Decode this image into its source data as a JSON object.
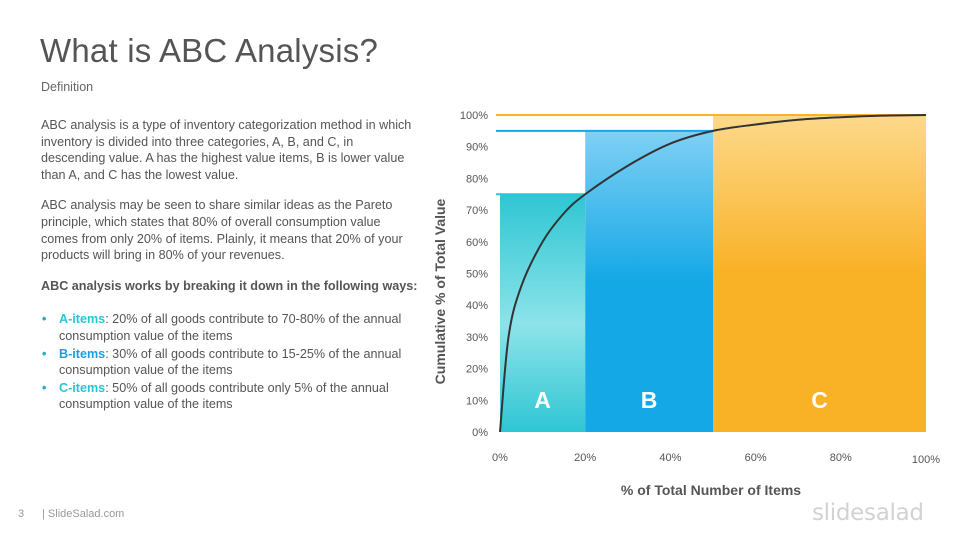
{
  "header": {
    "title": "What is ABC Analysis?",
    "subtitle": "Definition"
  },
  "body": {
    "para1": "ABC analysis is a type of inventory categorization method in which inventory is divided into three categories, A, B, and C, in descending  value. A has the highest value items, B is lower value than A, and C has the lowest value.",
    "para2": "ABC analysis may be seen to share similar ideas as the Pareto principle, which states that 80% of overall consumption value comes  from only 20% of items. Plainly, it means that 20% of your products will bring in 80% of your revenues.",
    "para3": "ABC analysis works by breaking it down in the following ways:",
    "bullets": [
      {
        "key": "A-items",
        "text": ": 20% of all goods contribute to 70-80% of the annual consumption value of the items"
      },
      {
        "key": "B-items",
        "text": ": 30% of all goods contribute to 15-25% of the annual  consumption value of the items"
      },
      {
        "key": "C-items",
        "text": ": 50% of all goods contribute only 5% of the annual consumption value of the items"
      }
    ],
    "bullet_symbol": "•"
  },
  "chart_data": {
    "type": "area",
    "xlabel": "% of Total Number of Items",
    "ylabel": "Cumulative % of Total Value",
    "x_ticks": [
      "0%",
      "20%",
      "40%",
      "60%",
      "80%",
      "100%"
    ],
    "y_ticks": [
      "0%",
      "10%",
      "20%",
      "30%",
      "40%",
      "50%",
      "60%",
      "70%",
      "80%",
      "90%",
      "100%"
    ],
    "xlim": [
      0,
      100
    ],
    "ylim": [
      0,
      100
    ],
    "regions": [
      {
        "name": "A",
        "x_start": 0,
        "x_end": 20,
        "y_top": 75,
        "color": "#2ec6d3"
      },
      {
        "name": "B",
        "x_start": 20,
        "x_end": 50,
        "y_top": 95,
        "color": "#14a8e6"
      },
      {
        "name": "C",
        "x_start": 50,
        "x_end": 100,
        "y_top": 100,
        "color": "#f9b125"
      }
    ],
    "reference_lines": [
      {
        "y": 75,
        "x_end": 20,
        "color": "#2ec6d3"
      },
      {
        "y": 95,
        "x_end": 50,
        "color": "#14a8e6"
      },
      {
        "y": 100,
        "x_end": 100,
        "color": "#f9b125"
      }
    ],
    "curve": {
      "x": [
        0,
        2,
        5,
        10,
        15,
        20,
        30,
        40,
        50,
        60,
        70,
        80,
        90,
        100
      ],
      "y": [
        0,
        30,
        46,
        60,
        69,
        75,
        84,
        91,
        95,
        97,
        98.5,
        99.3,
        99.8,
        100
      ]
    },
    "grid": false
  },
  "footer": {
    "page_number": "3",
    "site": "| SlideSalad.com",
    "logo": "slidesalad"
  }
}
